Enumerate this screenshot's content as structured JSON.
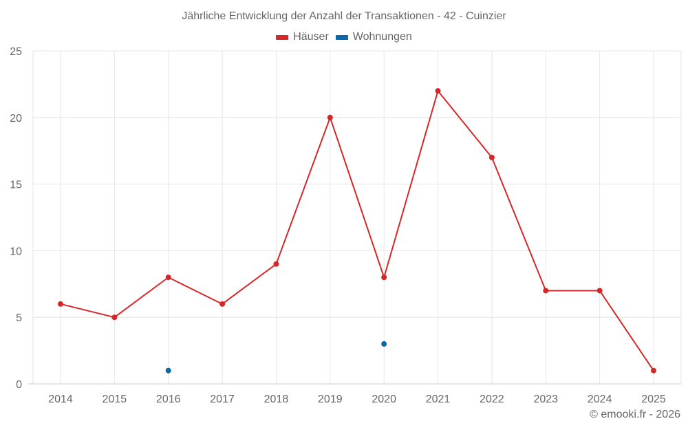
{
  "chart_data": {
    "type": "line",
    "title": "Jährliche Entwicklung der Anzahl der Transaktionen - 42 - Cuinzier",
    "xlabel": "",
    "ylabel": "",
    "categories": [
      "2014",
      "2015",
      "2016",
      "2017",
      "2018",
      "2019",
      "2020",
      "2021",
      "2022",
      "2023",
      "2024",
      "2025"
    ],
    "series": [
      {
        "name": "Häuser",
        "color": "#d62728",
        "values": [
          6,
          5,
          8,
          6,
          9,
          20,
          8,
          22,
          17,
          7,
          7,
          1
        ]
      },
      {
        "name": "Wohnungen",
        "color": "#0868a8",
        "values": [
          null,
          null,
          1,
          null,
          null,
          null,
          3,
          null,
          null,
          null,
          null,
          null
        ]
      }
    ],
    "ylim": [
      0,
      25
    ],
    "yticks": [
      0,
      5,
      10,
      15,
      20,
      25
    ],
    "grid": true,
    "legend_position": "top"
  },
  "legend": {
    "items": [
      {
        "label": "Häuser",
        "color": "#d62728"
      },
      {
        "label": "Wohnungen",
        "color": "#0868a8"
      }
    ]
  },
  "credit": "© emooki.fr - 2026"
}
